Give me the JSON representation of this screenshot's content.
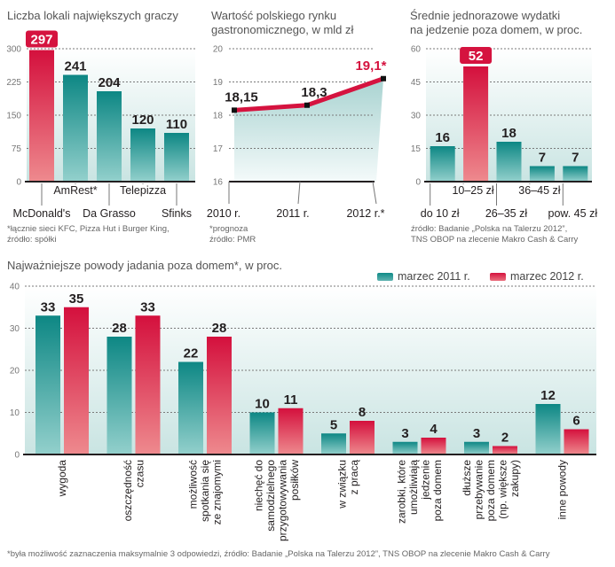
{
  "colors": {
    "teal": "#0f8a87",
    "teal_light": "#8ccfcb",
    "red": "#d5133f",
    "red_light": "#ea8a8f",
    "bg_top": "#ffffff",
    "bg_bottom": "#cfe7e6"
  },
  "chart_data": [
    {
      "id": "locations",
      "type": "bar",
      "title": "Liczba lokali największych graczy",
      "categories": [
        "McDonald's",
        "AmRest*",
        "Da Grasso",
        "Telepizza",
        "Sfinks"
      ],
      "values": [
        297,
        241,
        204,
        120,
        110
      ],
      "highlight_index": 0,
      "yticks": [
        0,
        75,
        150,
        225,
        300
      ],
      "ylim": [
        0,
        300
      ],
      "grid": true,
      "notes": [
        "*łącznie sieci KFC, Pizza Hut i Burger King,",
        "źródło: spółki"
      ]
    },
    {
      "id": "market",
      "type": "line",
      "title_lines": [
        "Wartość polskiego rynku",
        "gastronomicznego, w mld zł"
      ],
      "x": [
        "2010 r.",
        "2011 r.",
        "2012 r.*"
      ],
      "values": [
        18.15,
        18.3,
        19.1
      ],
      "value_labels": [
        "18,15",
        "18,3",
        "19,1*"
      ],
      "highlight_index": 2,
      "yticks": [
        16,
        17,
        18,
        19,
        20
      ],
      "ylim": [
        16,
        20
      ],
      "grid": true,
      "notes": [
        "*prognoza",
        "źródło: PMR"
      ]
    },
    {
      "id": "spending",
      "type": "bar",
      "title_lines": [
        "Średnie jednorazowe wydatki",
        "na jedzenie poza domem, w proc."
      ],
      "categories": [
        "do 10 zł",
        "10–25 zł",
        "26–35 zł",
        "36–45 zł",
        "pow. 45 zł"
      ],
      "values": [
        16,
        52,
        18,
        7,
        7
      ],
      "highlight_index": 1,
      "yticks": [
        0,
        15,
        30,
        45,
        60
      ],
      "ylim": [
        0,
        60
      ],
      "grid": true,
      "notes": [
        "źródło: Badanie „Polska na Talerzu 2012”,",
        "TNS OBOP na zlecenie Makro Cash & Carry"
      ]
    },
    {
      "id": "reasons",
      "type": "bar",
      "title": "Najważniejsze powody jadania poza domem*, w proc.",
      "categories": [
        [
          "wygoda"
        ],
        [
          "oszczędność",
          "czasu"
        ],
        [
          "możliwość",
          "spotkania się",
          "ze znajomymi"
        ],
        [
          "niechęć do",
          "samodzielnego",
          "przygotowywania",
          "posiłków"
        ],
        [
          "w związku",
          "z pracą"
        ],
        [
          "zarobki, które",
          "umożliwiają",
          "jedzenie",
          "poza domem"
        ],
        [
          "dłuższe",
          "przebywanie",
          "poza domem",
          "(np. większe",
          "zakupy)"
        ],
        [
          "inne powody"
        ]
      ],
      "series": [
        {
          "name": "marzec 2011 r.",
          "values": [
            33,
            28,
            22,
            10,
            5,
            3,
            3,
            12
          ]
        },
        {
          "name": "marzec 2012 r.",
          "values": [
            35,
            33,
            28,
            11,
            8,
            4,
            2,
            6
          ]
        }
      ],
      "yticks": [
        0,
        10,
        20,
        30,
        40
      ],
      "ylim": [
        0,
        40
      ],
      "grid": true,
      "legend_position": "top-right",
      "footnote": "*była możliwość zaznaczenia maksymalnie 3 odpowiedzi, źródło: Badanie „Polska na Talerzu 2012”, TNS OBOP na zlecenie Makro Cash & Carry"
    }
  ]
}
